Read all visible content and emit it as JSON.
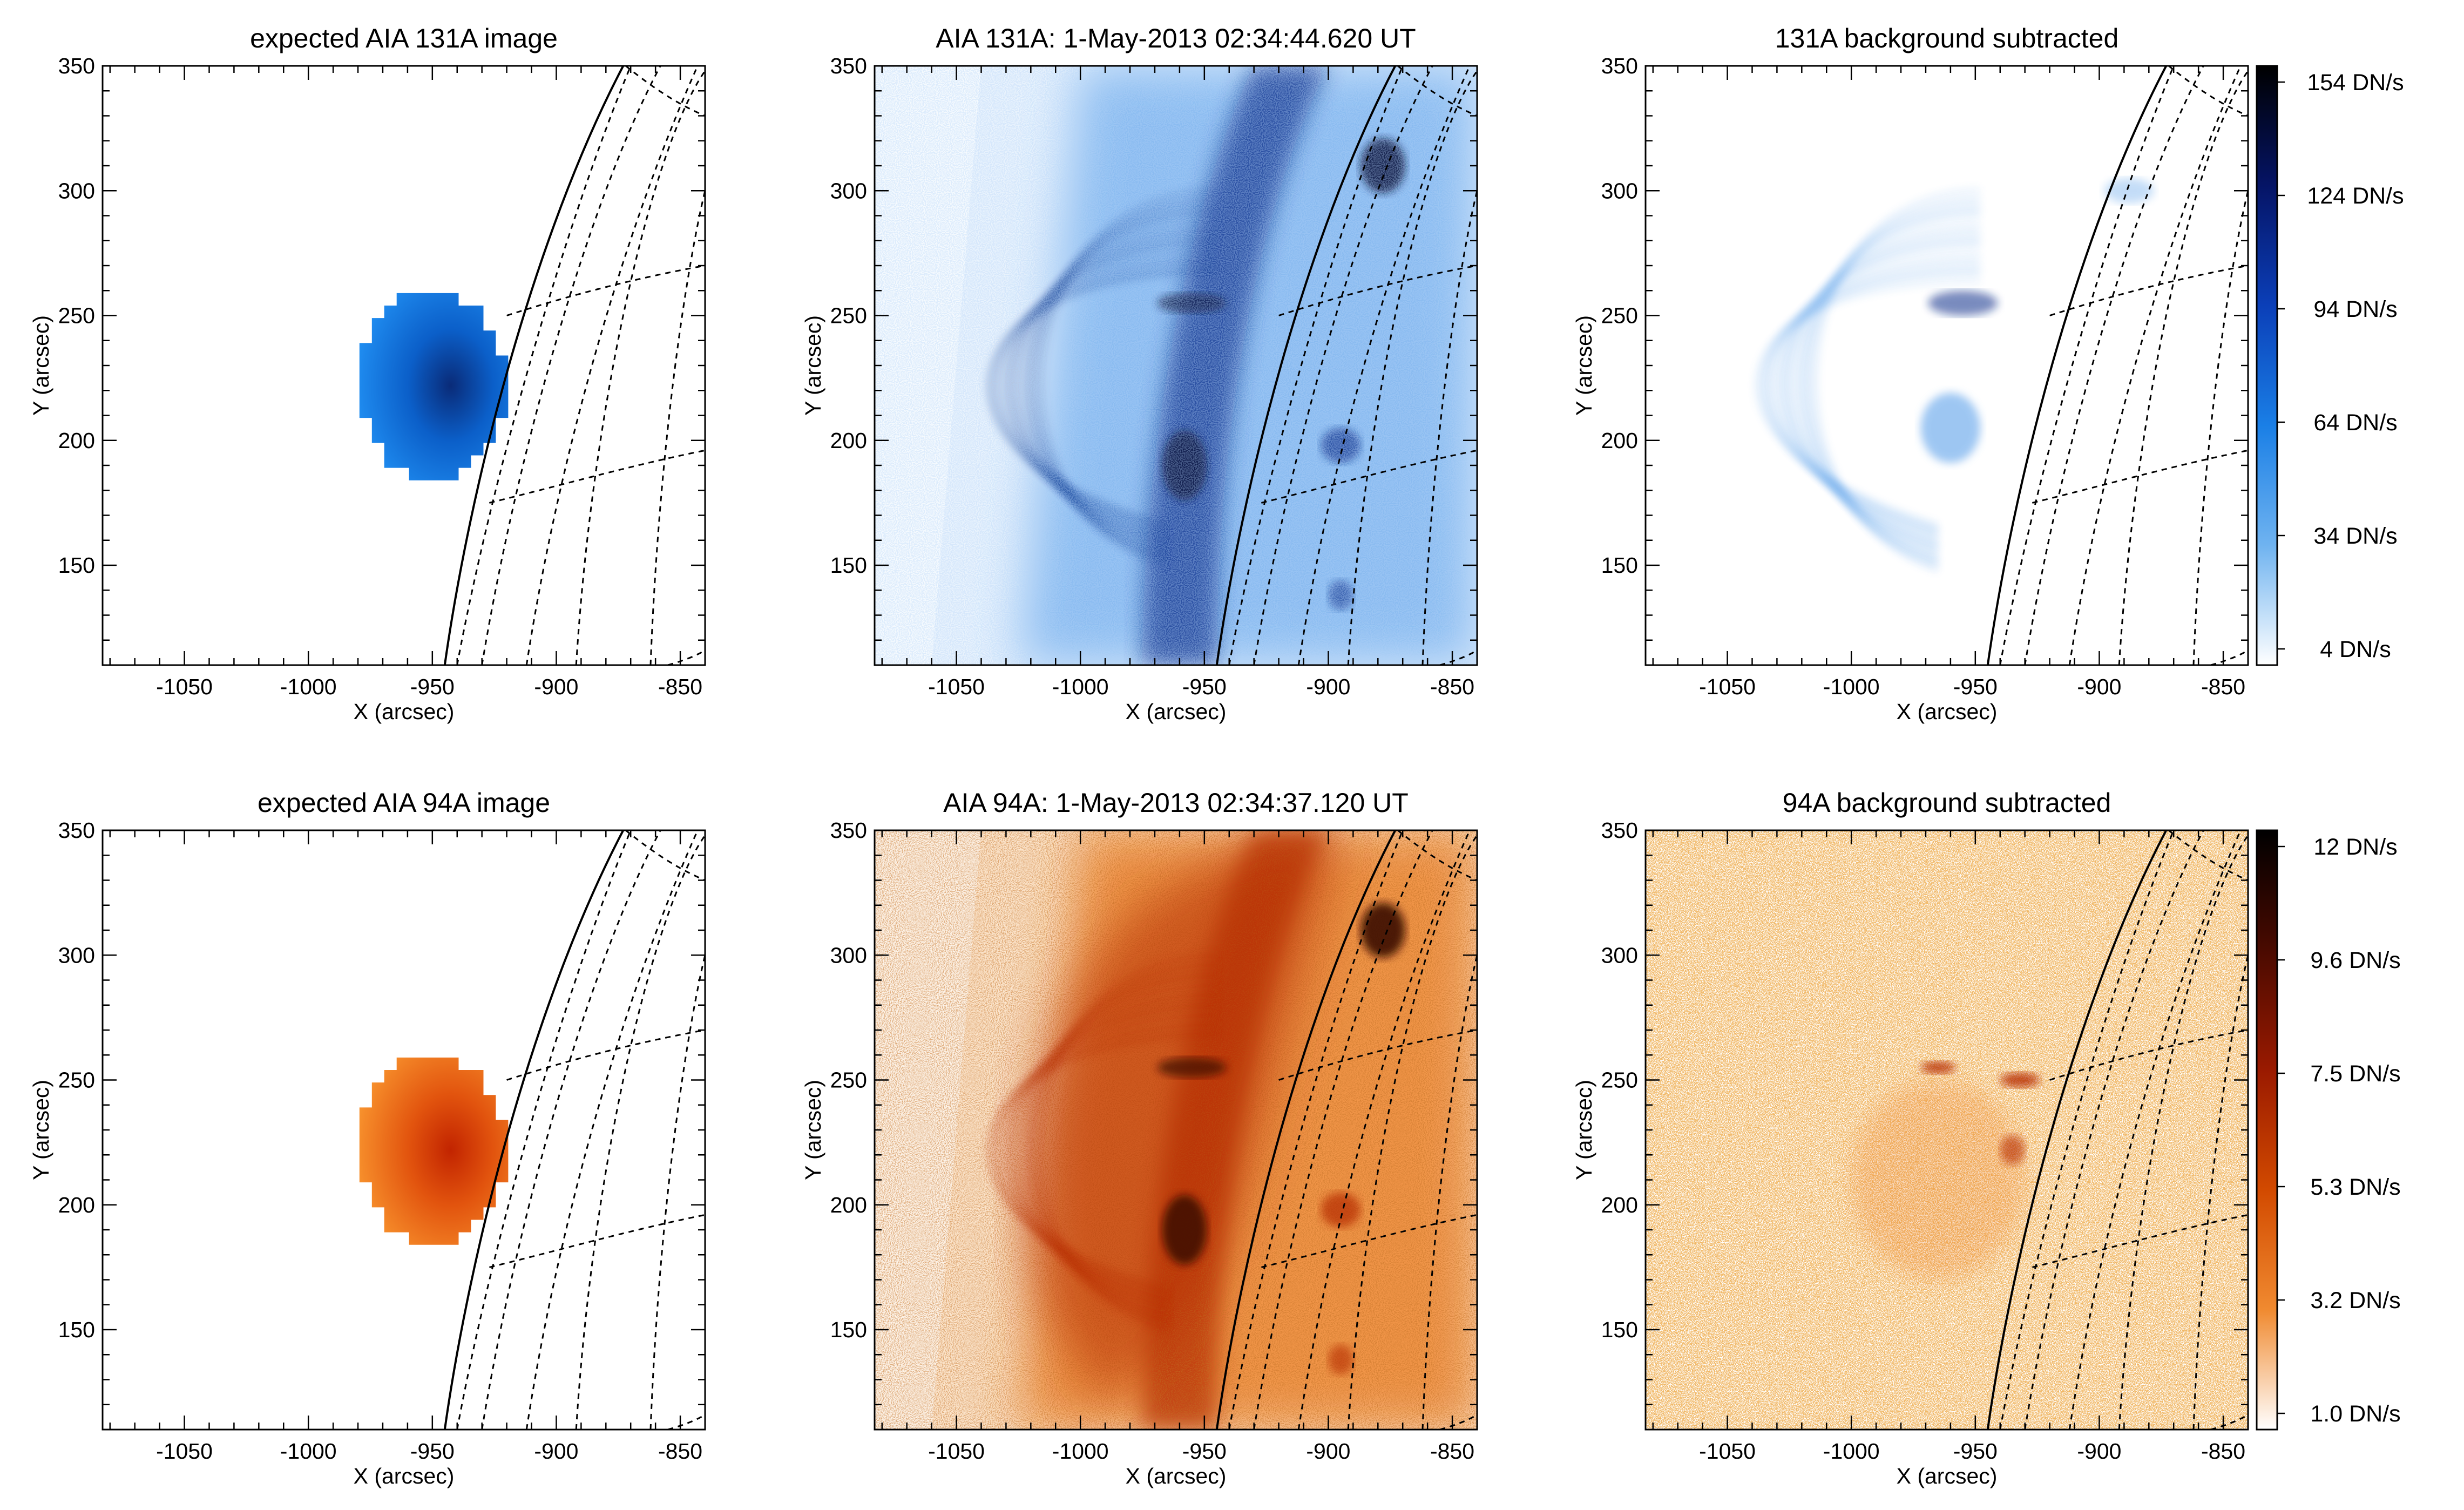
{
  "chart_data": [
    {
      "type": "heatmap",
      "title": "expected AIA 131A image",
      "xlabel": "X (arcsec)",
      "ylabel": "Y (arcsec)",
      "xlim": [
        -1083,
        -840
      ],
      "ylim": [
        110,
        350
      ],
      "xticks": [
        "-1050",
        "-1000",
        "-950",
        "-900",
        "-850"
      ],
      "yticks": [
        "150",
        "200",
        "250",
        "300",
        "350"
      ],
      "colormap": "blue",
      "source": {
        "cx": -950,
        "cy": 222,
        "rx": 28,
        "ry": 38,
        "peak_dn_per_s": 150
      }
    },
    {
      "type": "heatmap",
      "title": "AIA 131A:   1-May-2013 02:34:44.620 UT",
      "xlabel": "X (arcsec)",
      "ylabel": "Y (arcsec)",
      "xlim": [
        -1083,
        -840
      ],
      "ylim": [
        110,
        350
      ],
      "xticks": [
        "-1050",
        "-1000",
        "-950",
        "-900",
        "-850"
      ],
      "yticks": [
        "150",
        "200",
        "250",
        "300",
        "350"
      ],
      "colormap": "blue"
    },
    {
      "type": "heatmap",
      "title": "131A background subtracted",
      "xlabel": "X (arcsec)",
      "ylabel": "Y (arcsec)",
      "xlim": [
        -1083,
        -840
      ],
      "ylim": [
        110,
        350
      ],
      "xticks": [
        "-1050",
        "-1000",
        "-950",
        "-900",
        "-850"
      ],
      "yticks": [
        "150",
        "200",
        "250",
        "300",
        "350"
      ],
      "colormap": "blue"
    },
    {
      "type": "heatmap",
      "title": "expected AIA 94A image",
      "xlabel": "X (arcsec)",
      "ylabel": "Y (arcsec)",
      "xlim": [
        -1083,
        -840
      ],
      "ylim": [
        110,
        350
      ],
      "xticks": [
        "-1050",
        "-1000",
        "-950",
        "-900",
        "-850"
      ],
      "yticks": [
        "150",
        "200",
        "250",
        "300",
        "350"
      ],
      "colormap": "orange",
      "source": {
        "cx": -950,
        "cy": 222,
        "rx": 28,
        "ry": 38,
        "peak_dn_per_s": 9
      }
    },
    {
      "type": "heatmap",
      "title": "AIA 94A:   1-May-2013 02:34:37.120 UT",
      "xlabel": "X (arcsec)",
      "ylabel": "Y (arcsec)",
      "xlim": [
        -1083,
        -840
      ],
      "ylim": [
        110,
        350
      ],
      "xticks": [
        "-1050",
        "-1000",
        "-950",
        "-900",
        "-850"
      ],
      "yticks": [
        "150",
        "200",
        "250",
        "300",
        "350"
      ],
      "colormap": "orange"
    },
    {
      "type": "heatmap",
      "title": "94A background subtracted",
      "xlabel": "X (arcsec)",
      "ylabel": "Y (arcsec)",
      "xlim": [
        -1083,
        -840
      ],
      "ylim": [
        110,
        350
      ],
      "xticks": [
        "-1050",
        "-1000",
        "-950",
        "-900",
        "-850"
      ],
      "yticks": [
        "150",
        "200",
        "250",
        "300",
        "350"
      ],
      "colormap": "orange"
    }
  ],
  "colorbars": [
    {
      "ticks": [
        "154 DN/s",
        "124 DN/s",
        "94 DN/s",
        "64 DN/s",
        "34 DN/s",
        "4 DN/s"
      ],
      "stops": [
        "#000000",
        "#051466",
        "#0b3fb8",
        "#1a7fe6",
        "#6fb3f0",
        "#ffffff"
      ]
    },
    {
      "ticks": [
        "12 DN/s",
        "9.6 DN/s",
        "7.5 DN/s",
        "5.3 DN/s",
        "3.2 DN/s",
        "1.0 DN/s"
      ],
      "stops": [
        "#000000",
        "#4a0a00",
        "#9a1a00",
        "#d24a00",
        "#f08a30",
        "#ffffff"
      ]
    }
  ],
  "colors": {
    "blue_light": "#cfe4fa",
    "blue_mid": "#3d8fe6",
    "blue_dark": "#0b2f8a",
    "blue_darkest": "#0a1440",
    "orange_light": "#fbd3a8",
    "orange_mid": "#ee7a1e",
    "orange_dark": "#b52a00",
    "orange_darkest": "#3a0800"
  }
}
